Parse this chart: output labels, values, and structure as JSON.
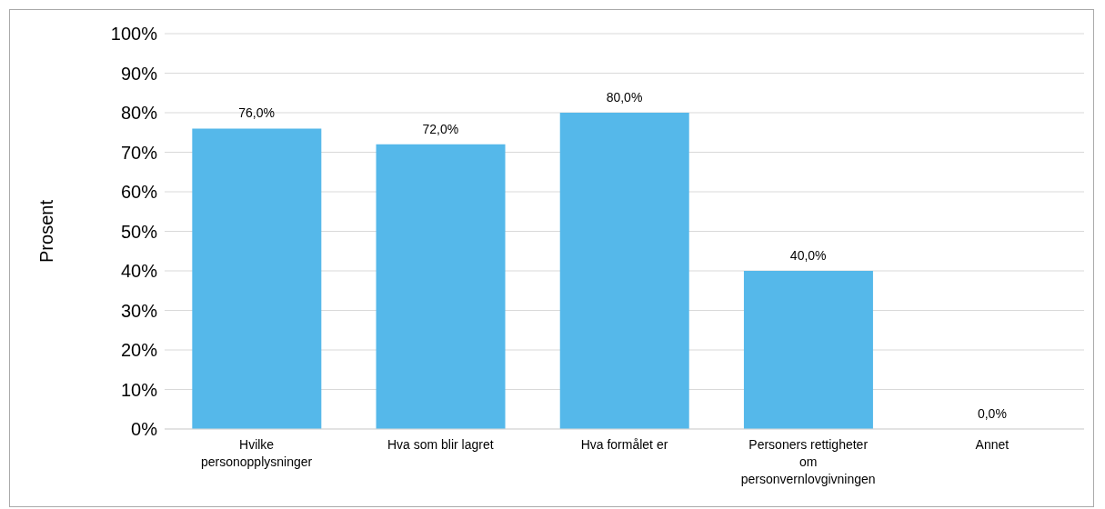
{
  "chart_data": {
    "type": "bar",
    "ylabel": "Prosent",
    "categories": [
      "Hvilke personopplysninger",
      "Hva som blir lagret",
      "Hva formålet er",
      "Personers rettigheter om personvernlovgivningen",
      "Annet"
    ],
    "values": [
      76,
      72,
      80,
      40,
      0
    ],
    "value_labels": [
      "76,0%",
      "72,0%",
      "80,0%",
      "40,0%",
      "0,0%"
    ],
    "color": "#55b8ea",
    "ylim": [
      0,
      100
    ],
    "yticks": [
      {
        "value": 0,
        "label": "0%"
      },
      {
        "value": 10,
        "label": "10%"
      },
      {
        "value": 20,
        "label": "20%"
      },
      {
        "value": 30,
        "label": "30%"
      },
      {
        "value": 40,
        "label": "40%"
      },
      {
        "value": 50,
        "label": "50%"
      },
      {
        "value": 60,
        "label": "60%"
      },
      {
        "value": 70,
        "label": "70%"
      },
      {
        "value": 80,
        "label": "80%"
      },
      {
        "value": 90,
        "label": "90%"
      },
      {
        "value": 100,
        "label": "100%"
      }
    ],
    "grid": "y",
    "legend": false
  }
}
